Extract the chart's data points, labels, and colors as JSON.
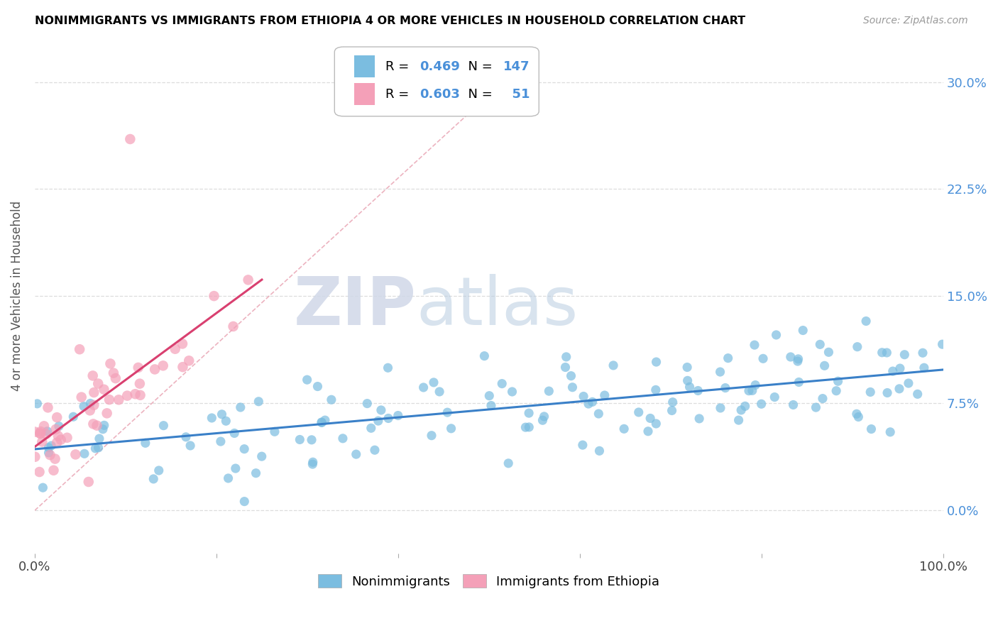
{
  "title": "NONIMMIGRANTS VS IMMIGRANTS FROM ETHIOPIA 4 OR MORE VEHICLES IN HOUSEHOLD CORRELATION CHART",
  "source": "Source: ZipAtlas.com",
  "ylabel": "4 or more Vehicles in Household",
  "xlim": [
    0,
    100
  ],
  "ylim": [
    -3,
    33
  ],
  "yticks": [
    0,
    7.5,
    15.0,
    22.5,
    30.0
  ],
  "yticklabels": [
    "0.0%",
    "7.5%",
    "15.0%",
    "22.5%",
    "30.0%"
  ],
  "xtick_vals": [
    0,
    100
  ],
  "xticklabels_ends": [
    "0.0%",
    "100.0%"
  ],
  "blue_color": "#7bbde0",
  "pink_color": "#f4a0b8",
  "blue_line_color": "#3a80c8",
  "pink_line_color": "#d94070",
  "diag_line_color": "#f0b0c0",
  "legend_R1": "0.469",
  "legend_N1": "147",
  "legend_R2": "0.603",
  "legend_N2": "51",
  "watermark_zip": "ZIP",
  "watermark_atlas": "atlas",
  "legend_value_color": "#4a90d9",
  "right_tick_color": "#4a90d9"
}
